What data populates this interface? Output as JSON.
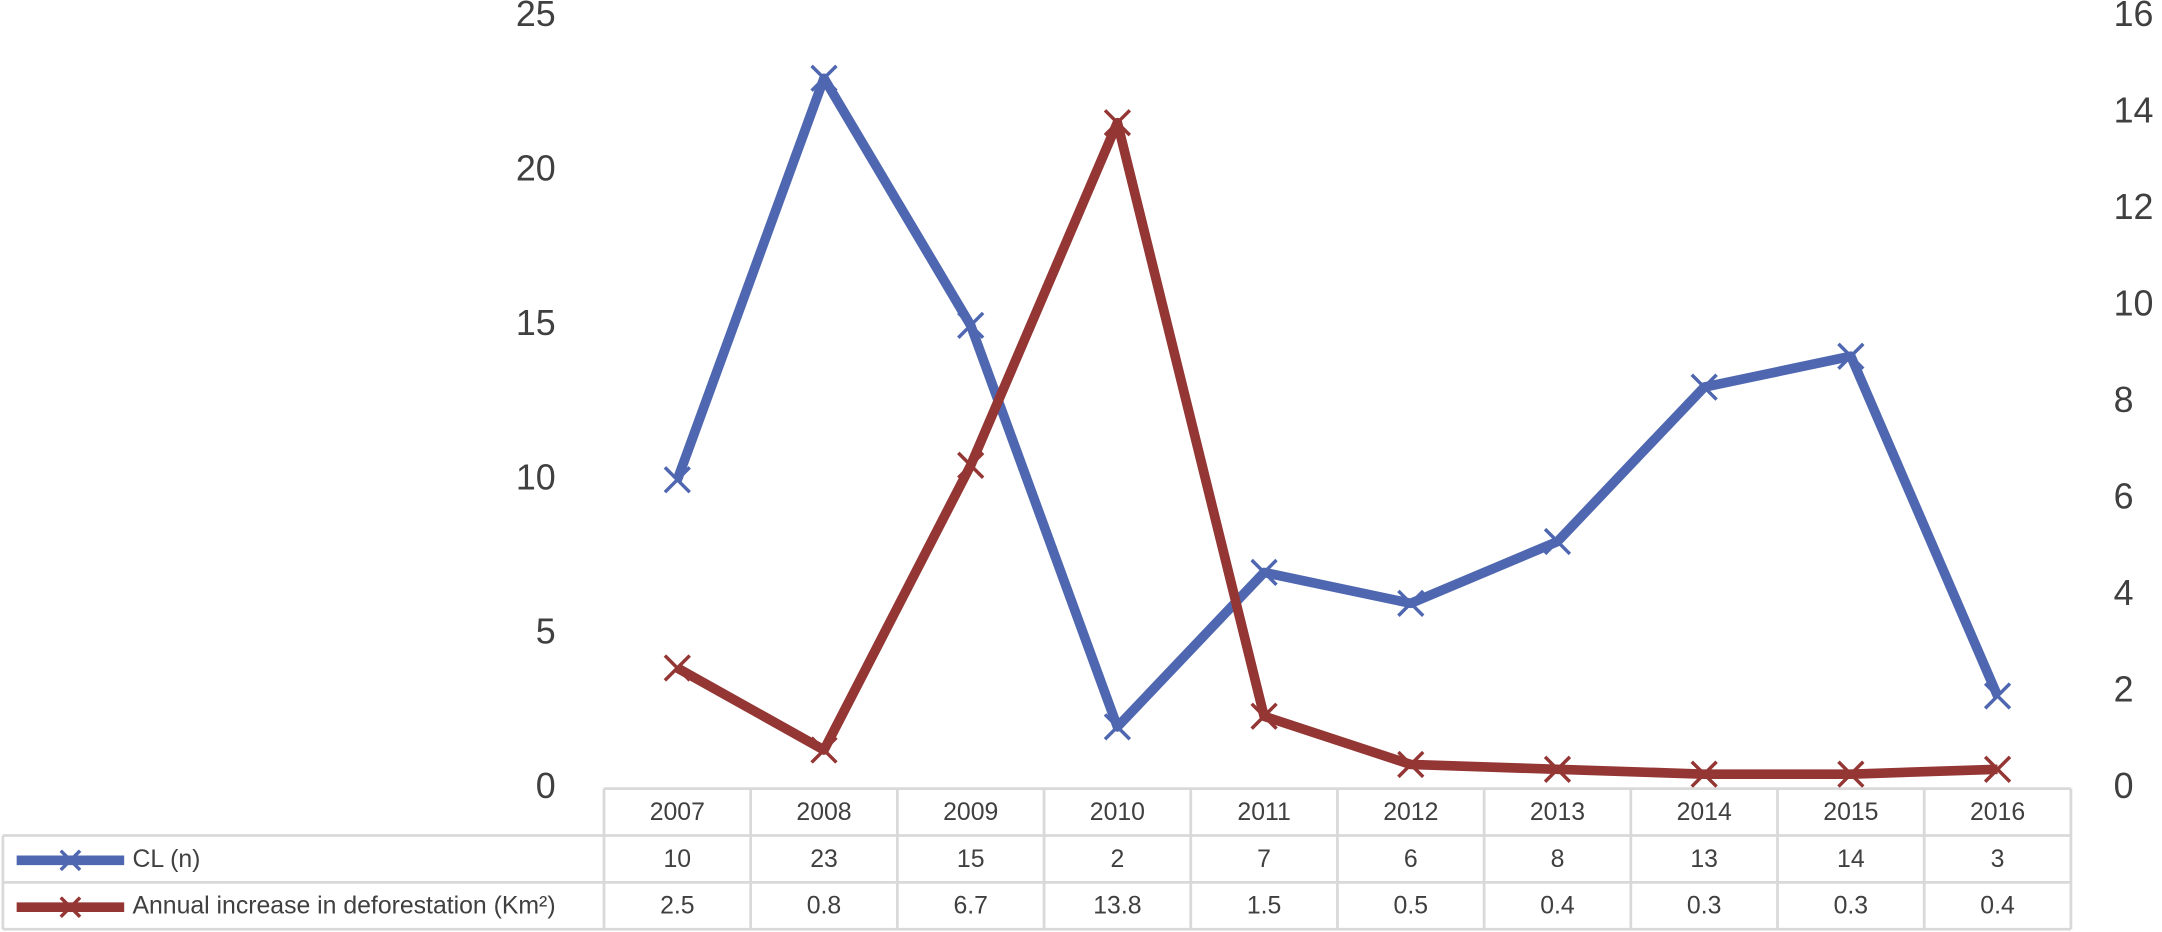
{
  "chart_data": {
    "type": "line",
    "categories": [
      "2007",
      "2008",
      "2009",
      "2010",
      "2011",
      "2012",
      "2013",
      "2014",
      "2015",
      "2016"
    ],
    "series": [
      {
        "name": "CL (n)",
        "color": "#4f67b0",
        "values": [
          10,
          23,
          15,
          2,
          7,
          6,
          8,
          13,
          14,
          3
        ]
      },
      {
        "name": "Annual increase in deforestation (Km²)",
        "color": "#943634",
        "axis": "y2",
        "values": [
          2.5,
          0.8,
          6.7,
          13.8,
          1.5,
          0.5,
          0.4,
          0.3,
          0.3,
          0.4
        ]
      }
    ],
    "ylim": [
      0,
      25
    ],
    "yticks": [
      0,
      5,
      10,
      15,
      20,
      25
    ],
    "y2lim": [
      0,
      16
    ],
    "y2ticks": [
      0,
      2,
      4,
      6,
      8,
      10,
      12,
      14,
      16
    ],
    "grid": false,
    "data_table": true
  }
}
